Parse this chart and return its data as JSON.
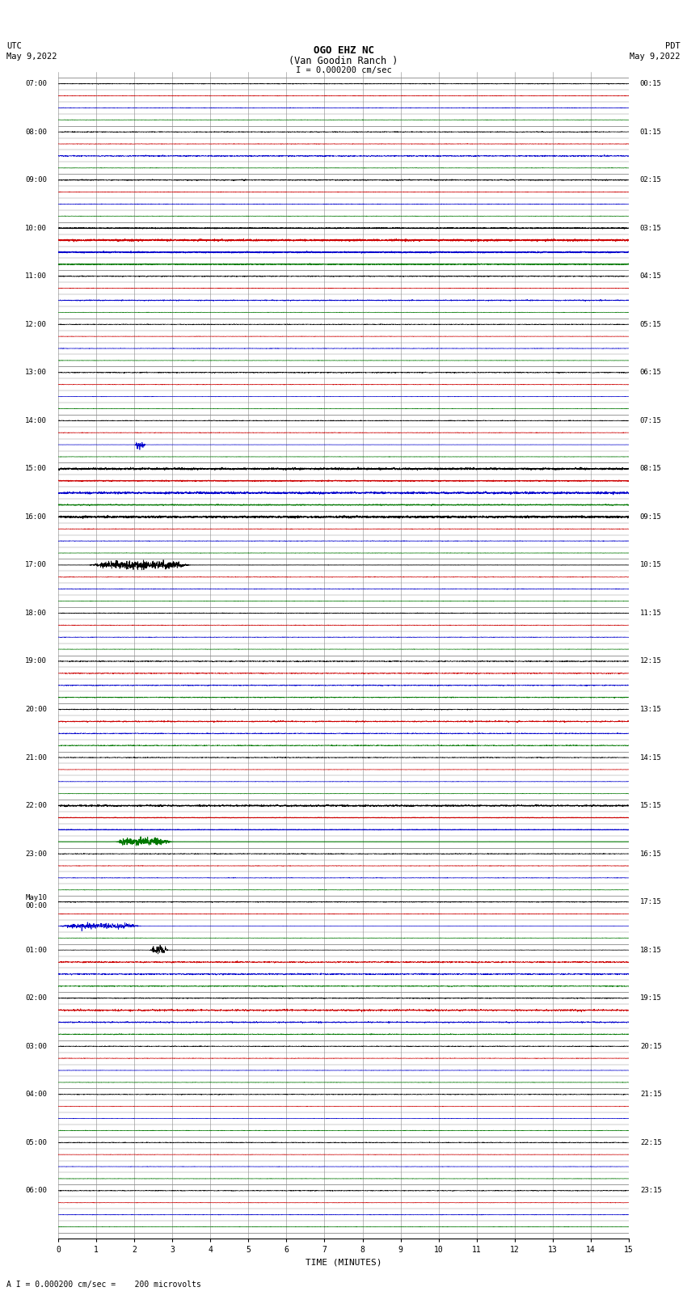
{
  "title_line1": "OGO EHZ NC",
  "title_line2": "(Van Goodin Ranch )",
  "title_line3": "I = 0.000200 cm/sec",
  "left_top_label1": "UTC",
  "left_top_label2": "May 9,2022",
  "right_top_label1": "PDT",
  "right_top_label2": "May 9,2022",
  "bottom_label": "TIME (MINUTES)",
  "bottom_note": "A I = 0.000200 cm/sec =    200 microvolts",
  "xlim": [
    0,
    15
  ],
  "xticks": [
    0,
    1,
    2,
    3,
    4,
    5,
    6,
    7,
    8,
    9,
    10,
    11,
    12,
    13,
    14,
    15
  ],
  "figsize": [
    8.5,
    16.13
  ],
  "dpi": 100,
  "bg_color": "#ffffff",
  "trace_color_black": "#000000",
  "trace_color_red": "#cc0000",
  "trace_color_blue": "#0000cc",
  "trace_color_green": "#007700",
  "grid_color": "#888888",
  "left_times_utc": [
    "07:00",
    "08:00",
    "09:00",
    "10:00",
    "11:00",
    "12:00",
    "13:00",
    "14:00",
    "15:00",
    "16:00",
    "17:00",
    "18:00",
    "19:00",
    "20:00",
    "21:00",
    "22:00",
    "23:00",
    "May10\n00:00",
    "01:00",
    "02:00",
    "03:00",
    "04:00",
    "05:00",
    "06:00"
  ],
  "right_times_pdt": [
    "00:15",
    "01:15",
    "02:15",
    "03:15",
    "04:15",
    "05:15",
    "06:15",
    "07:15",
    "08:15",
    "09:15",
    "10:15",
    "11:15",
    "12:15",
    "13:15",
    "14:15",
    "15:15",
    "16:15",
    "17:15",
    "18:15",
    "19:15",
    "20:15",
    "21:15",
    "22:15",
    "23:15"
  ],
  "n_rows": 24,
  "n_channels": 4
}
